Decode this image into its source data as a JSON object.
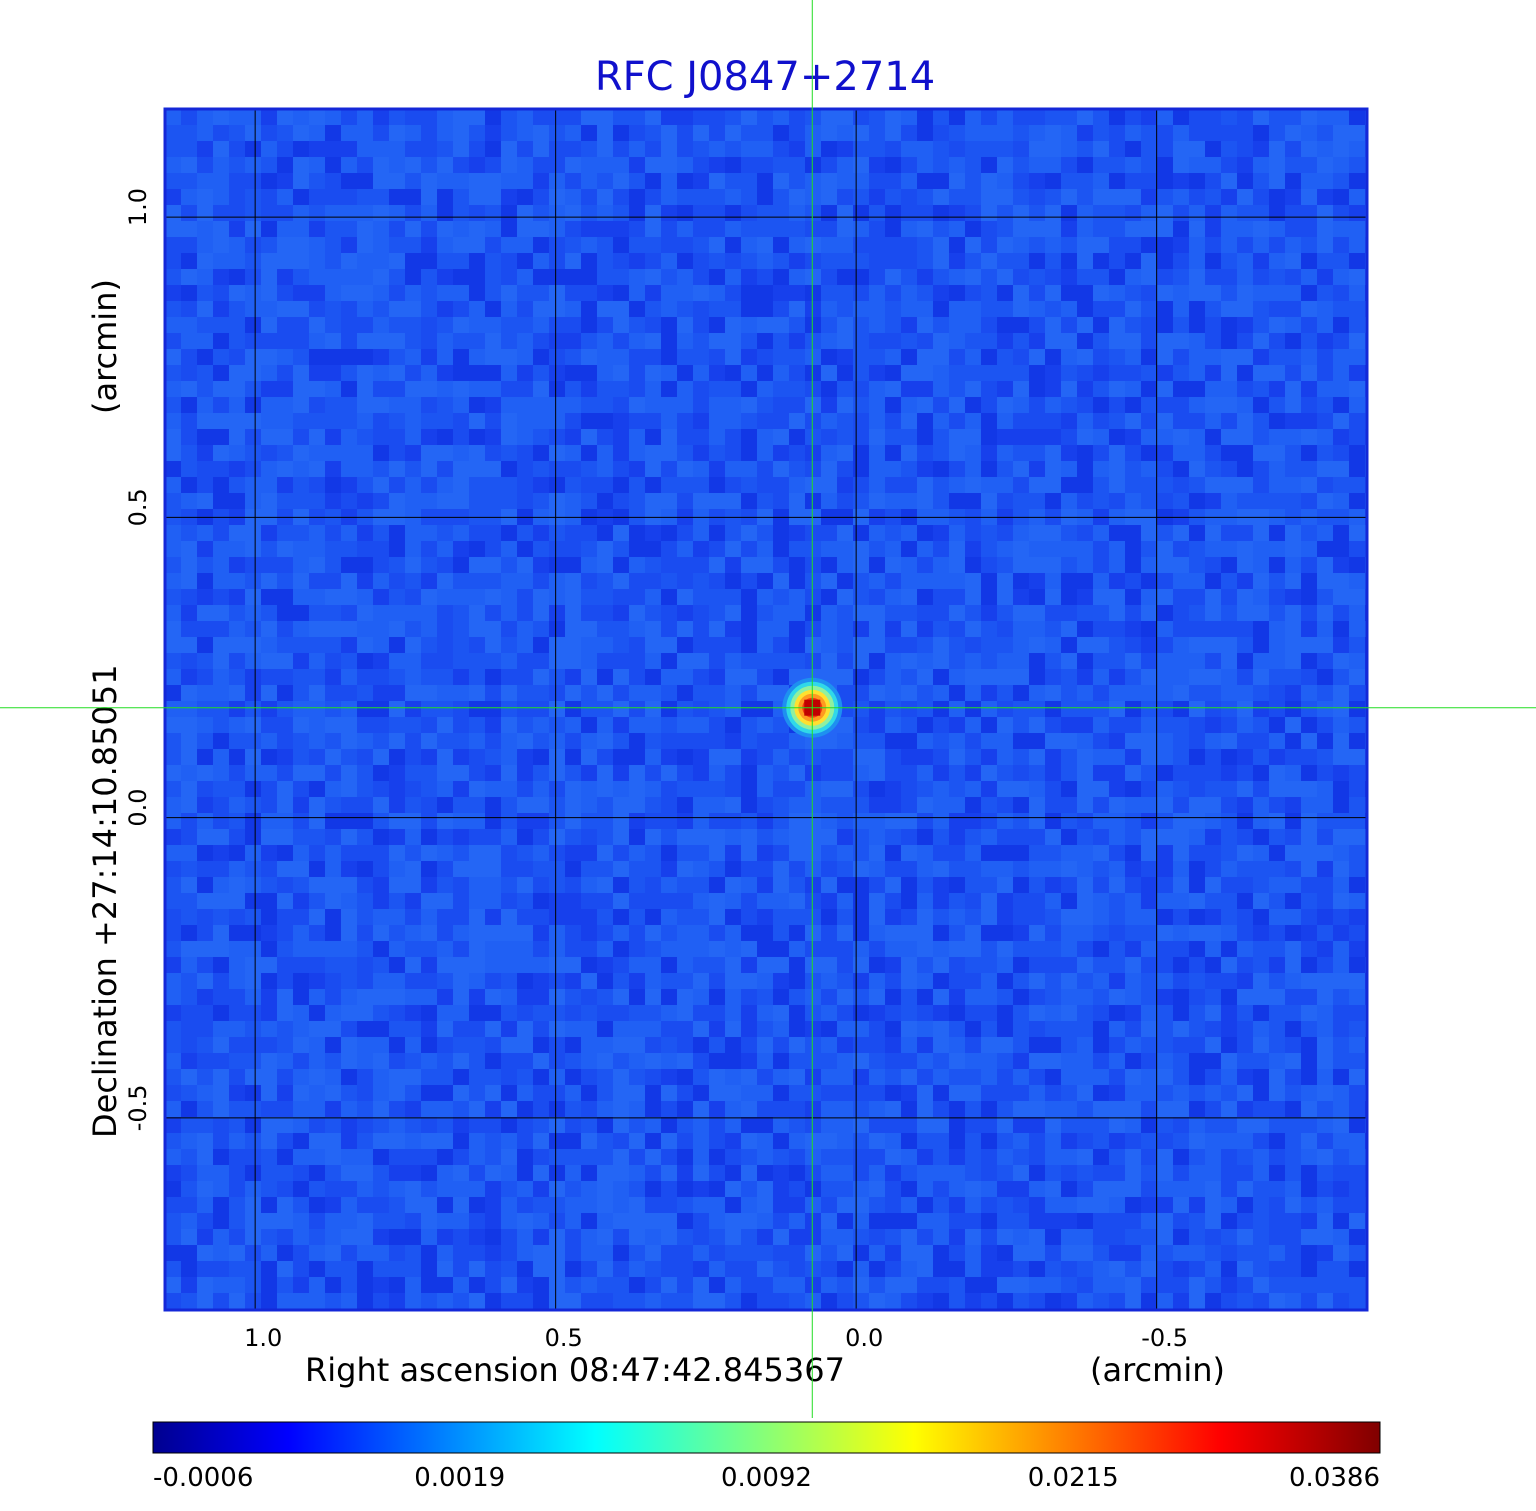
{
  "chart_data": {
    "type": "heatmap",
    "title": "RFC J0847+2714",
    "xlabel": "Right ascension  08:47:42.845367",
    "xunit": "(arcmin)",
    "ylabel": "Declination  +27:14:10.85051",
    "yunit": "(arcmin)",
    "xlim": [
      1.15,
      -0.85
    ],
    "ylim": [
      -0.82,
      1.18
    ],
    "x_ticks": [
      1.0,
      0.5,
      0.0,
      -0.5
    ],
    "x_tick_labels": [
      "1.0",
      "0.5",
      "0.0",
      "-0.5"
    ],
    "y_ticks": [
      1.0,
      0.5,
      0.0,
      -0.5
    ],
    "y_tick_labels": [
      "1.0",
      "0.5",
      "0.0",
      "-0.5"
    ],
    "grid": true,
    "crosshair": {
      "x": 0.073,
      "y": 0.183
    },
    "source": {
      "x": 0.073,
      "y": 0.183,
      "peak": 0.0386
    },
    "colormap": "jet",
    "colorbar": {
      "range": [
        -0.0006,
        0.0386
      ],
      "tick_labels": [
        "-0.0006",
        "0.0019",
        "0.0092",
        "0.0215",
        "0.0386"
      ]
    }
  }
}
